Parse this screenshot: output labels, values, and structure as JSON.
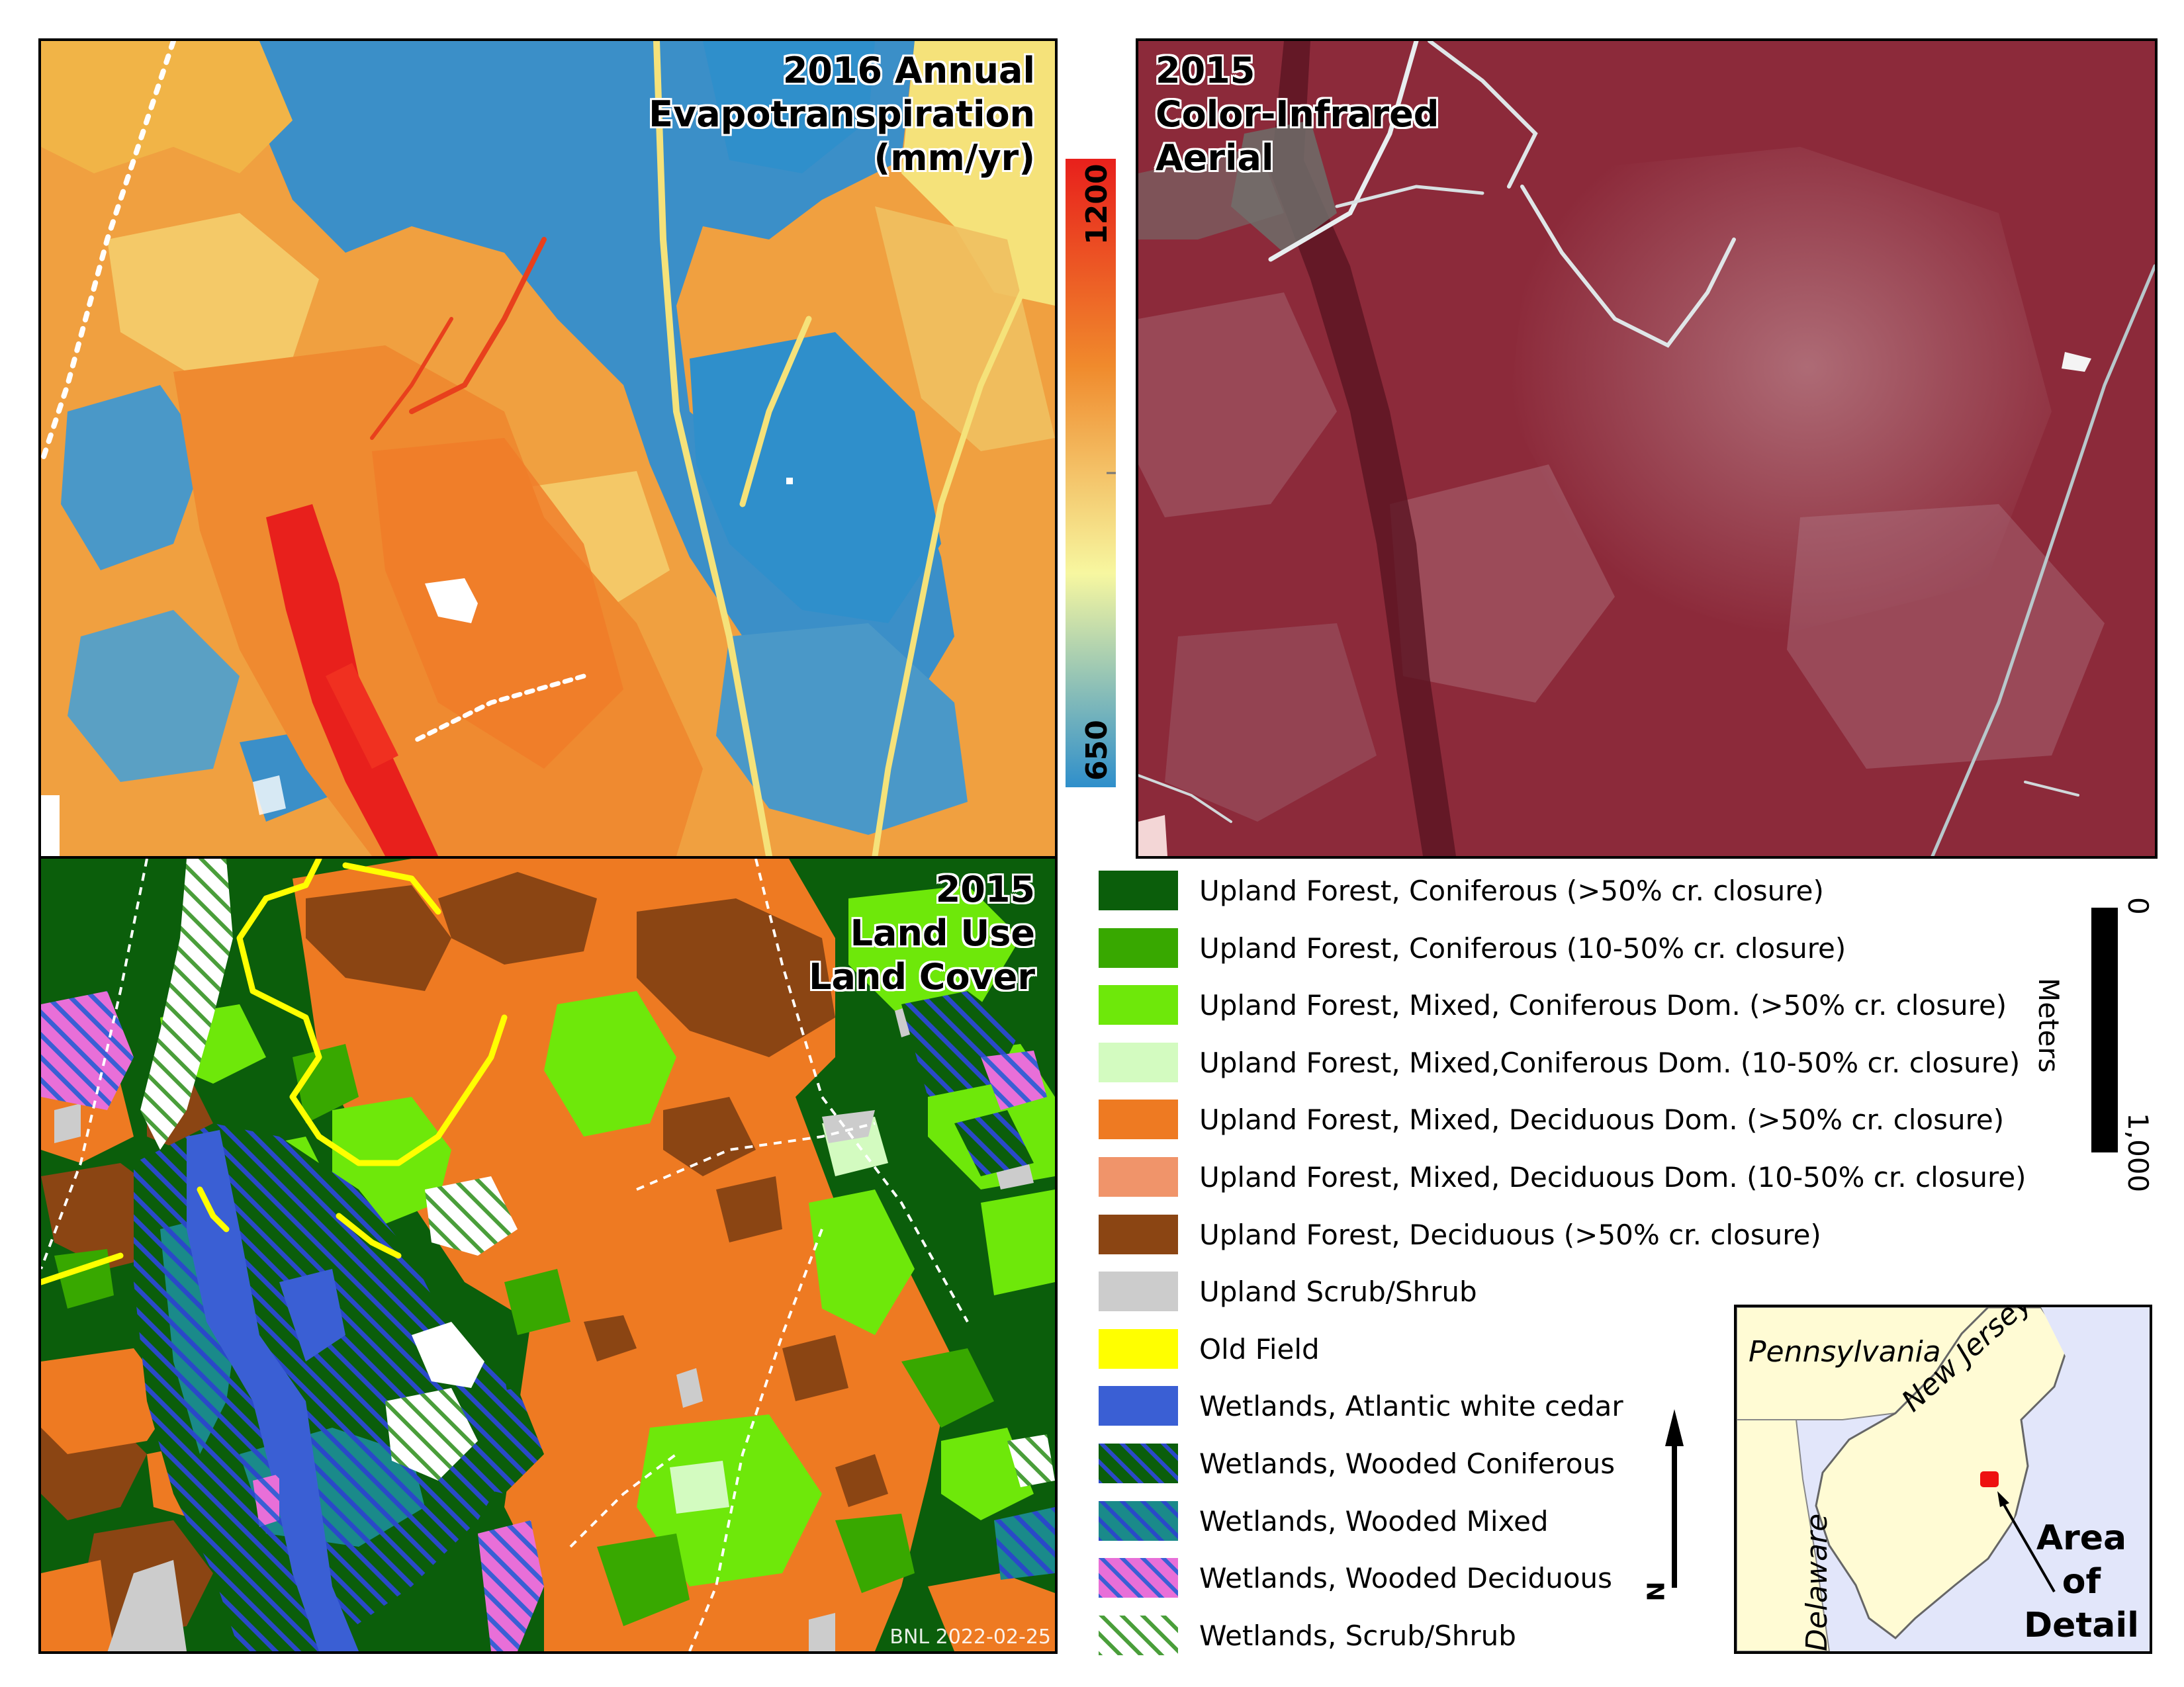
{
  "panels": {
    "et": {
      "title_lines": [
        "2016 Annual",
        "Evapotranspiration",
        "(mm/yr)"
      ]
    },
    "cir": {
      "title_lines": [
        "2015",
        "Color-Infrared",
        "Aerial"
      ]
    },
    "lulc": {
      "title_lines": [
        "2015",
        "Land Use",
        "Land Cover"
      ]
    }
  },
  "colorbar": {
    "max_label": "1200",
    "min_label": "650",
    "max_value": 1200,
    "min_value": 650,
    "colors": [
      "#2f8fcb",
      "#f7f7a0",
      "#f08a2c",
      "#e8201c"
    ]
  },
  "legend": [
    {
      "label": "Upland Forest, Coniferous (>50% cr. closure)",
      "color": "#0b5e0b",
      "hatch": ""
    },
    {
      "label": "Upland Forest, Coniferous (10-50% cr. closure)",
      "color": "#38a800",
      "hatch": ""
    },
    {
      "label": "Upland Forest, Mixed, Coniferous Dom. (>50% cr. closure)",
      "color": "#6ee80a",
      "hatch": ""
    },
    {
      "label": "Upland Forest, Mixed,Coniferous Dom. (10-50% cr. closure)",
      "color": "#d3fbc0",
      "hatch": ""
    },
    {
      "label": "Upland Forest, Mixed, Deciduous Dom. (>50% cr. closure)",
      "color": "#ee7a22",
      "hatch": ""
    },
    {
      "label": "Upland Forest, Mixed, Deciduous Dom. (10-50% cr. closure)",
      "color": "#f0946a",
      "hatch": ""
    },
    {
      "label": "Upland Forest, Deciduous (>50% cr. closure)",
      "color": "#8b4513",
      "hatch": ""
    },
    {
      "label": "Upland Scrub/Shrub",
      "color": "#cccccc",
      "hatch": ""
    },
    {
      "label": "Old Field",
      "color": "#ffff00",
      "hatch": ""
    },
    {
      "label": "Wetlands, Atlantic white cedar",
      "color": "#3a5fd4",
      "hatch": ""
    },
    {
      "label": "Wetlands, Wooded Coniferous",
      "color": "#0b5e0b",
      "hatch": "#2a49c8"
    },
    {
      "label": "Wetlands, Wooded Mixed",
      "color": "#1a8a8a",
      "hatch": "#2a49c8"
    },
    {
      "label": "Wetlands, Wooded Deciduous",
      "color": "#e86fd8",
      "hatch": "#3a5fd4"
    },
    {
      "label": "Wetlands, Scrub/Shrub",
      "color": "#ffffff",
      "hatch": "#4a9e3a"
    }
  ],
  "scalebar": {
    "start_label": "0",
    "end_label": "1,000",
    "unit": "Meters",
    "start_value": 0,
    "end_value": 1000
  },
  "north_arrow": {
    "label": "N"
  },
  "inset": {
    "state_labels": [
      "Pennsylvania",
      "New Jersey",
      "Delaware"
    ],
    "callout_lines": [
      "Area",
      "of",
      "Detail"
    ]
  },
  "credit": "BNL 2022-02-25"
}
